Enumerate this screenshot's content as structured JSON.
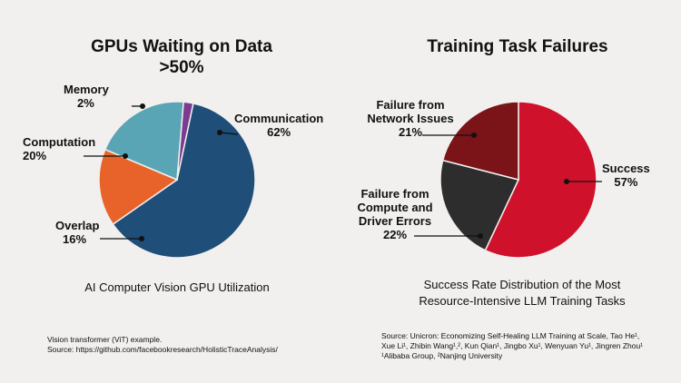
{
  "chart_data": [
    {
      "type": "pie",
      "title": "GPUs Waiting on Data",
      "subtitle": ">50%",
      "caption": "AI Computer Vision GPU Utilization",
      "slices": [
        {
          "label": "Communication",
          "value": 62,
          "display": "62%",
          "color": "#1f4e79"
        },
        {
          "label": "Overlap",
          "value": 16,
          "display": "16%",
          "color": "#e8632a"
        },
        {
          "label": "Computation",
          "value": 20,
          "display": "20%",
          "color": "#5aa5b5"
        },
        {
          "label": "Memory",
          "value": 2,
          "display": "2%",
          "color": "#7a3c8f"
        }
      ],
      "source": [
        "Vision transformer (ViT) example.",
        "Source: https://github.com/facebookresearch/HolisticTraceAnalysis/"
      ]
    },
    {
      "type": "pie",
      "title": "Training Task Failures",
      "caption_lines": [
        "Success Rate Distribution of the Most",
        "Resource-Intensive LLM Training Tasks"
      ],
      "slices": [
        {
          "label": "Success",
          "value": 57,
          "display": "57%",
          "color": "#d0112b"
        },
        {
          "label": "Failure from Compute and Driver Errors",
          "label_lines": [
            "Failure from",
            "Compute and",
            "Driver Errors"
          ],
          "value": 22,
          "display": "22%",
          "color": "#2d2d2d"
        },
        {
          "label": "Failure from Network Issues",
          "label_lines": [
            "Failure from",
            "Network Issues"
          ],
          "value": 21,
          "display": "21%",
          "color": "#7a1418"
        }
      ],
      "source": [
        "Source:  Unicron: Economizing Self-Healing LLM Training at Scale, Tao He¹,",
        "Xue Li¹, Zhibin Wang¹,², Kun Qian¹, Jingbo Xu¹, Wenyuan Yu¹, Jingren Zhou¹",
        "¹Alibaba Group, ²Nanjing University"
      ]
    }
  ]
}
